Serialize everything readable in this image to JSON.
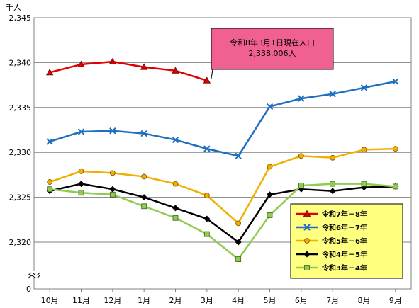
{
  "chart_data": {
    "type": "line",
    "ylabel": "千人",
    "ylim": [
      2320,
      2345
    ],
    "yticks": [
      "0",
      "2,320",
      "2,325",
      "2,330",
      "2,335",
      "2,340",
      "2,345"
    ],
    "y_axis_break": true,
    "grid": true,
    "categories": [
      "10月",
      "11月",
      "12月",
      "1月",
      "2月",
      "3月",
      "4月",
      "5月",
      "6月",
      "7月",
      "8月",
      "9月"
    ],
    "series": [
      {
        "name": "令和7年－8年",
        "color": "#e00000",
        "marker": "triangle",
        "values": [
          2338.9,
          2339.8,
          2340.1,
          2339.5,
          2339.1,
          2338.0,
          null,
          null,
          null,
          null,
          null,
          null
        ]
      },
      {
        "name": "令和6年－7年",
        "color": "#1f6fc0",
        "marker": "x",
        "values": [
          2331.2,
          2332.3,
          2332.4,
          2332.1,
          2331.4,
          2330.4,
          2329.6,
          2335.1,
          2336.0,
          2336.5,
          2337.2,
          2337.9
        ]
      },
      {
        "name": "令和5年－6年",
        "color": "#f0b000",
        "marker": "circle",
        "values": [
          2326.7,
          2327.9,
          2327.7,
          2327.3,
          2326.5,
          2325.2,
          2322.1,
          2328.4,
          2329.6,
          2329.4,
          2330.3,
          2330.4
        ]
      },
      {
        "name": "令和4年－5年",
        "color": "#000000",
        "marker": "diamond",
        "values": [
          2325.7,
          2326.5,
          2325.9,
          2325.0,
          2323.8,
          2322.6,
          2320.0,
          2325.3,
          2325.9,
          2325.7,
          2326.1,
          2326.2
        ]
      },
      {
        "name": "令和3年－4年",
        "color": "#90cc50",
        "marker": "square",
        "values": [
          2325.9,
          2325.5,
          2325.3,
          2324.0,
          2322.7,
          2320.9,
          2318.1,
          2323.0,
          2326.3,
          2326.5,
          2326.5,
          2326.2
        ]
      }
    ],
    "legend": "bottom-right",
    "annotation": {
      "lines": [
        "令和8年3月1日現在人口",
        "2,338,006人"
      ],
      "points_to": {
        "series": "令和7年－8年",
        "category": "3月"
      }
    },
    "colors": {
      "legend_bg": "#ffff80",
      "callout_bg": "#f06090",
      "grid": "#808080"
    }
  }
}
